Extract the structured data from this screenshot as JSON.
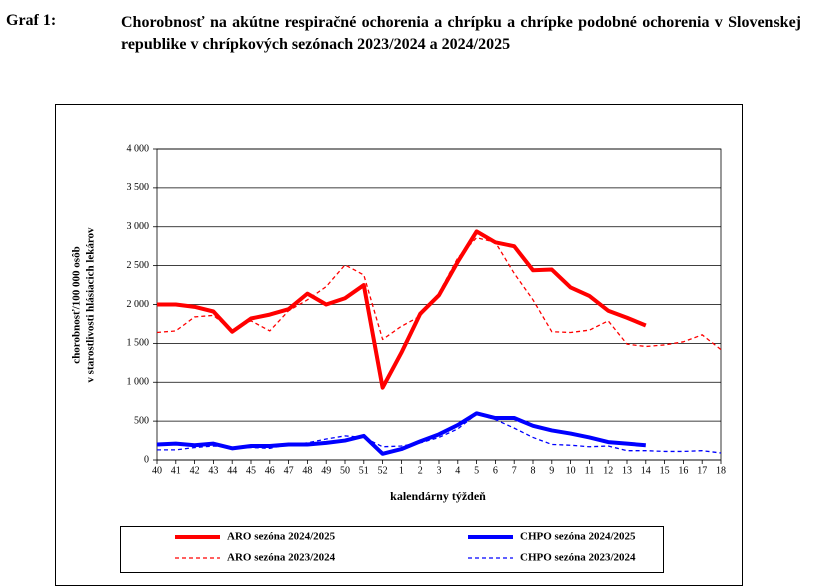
{
  "caption": "Graf 1:",
  "chart_data": {
    "type": "line",
    "title": "Chorobnosť na akútne respiračné ochorenia a chrípku a chrípke podobné ochorenia v Slovenskej republike v chrípkových sezónach 2023/2024 a 2024/2025",
    "x_label": "kalendárny týždeň",
    "y_label": [
      "chorobnosť/100 000 osôb",
      "v starostlivosti hlásiacich lekárov"
    ],
    "categories": [
      "40",
      "41",
      "42",
      "43",
      "44",
      "45",
      "46",
      "47",
      "48",
      "49",
      "50",
      "51",
      "52",
      "1",
      "2",
      "3",
      "4",
      "5",
      "6",
      "7",
      "8",
      "9",
      "10",
      "11",
      "12",
      "13",
      "14",
      "15",
      "16",
      "17",
      "18"
    ],
    "ylim": [
      0,
      4000
    ],
    "yticks": [
      0,
      500,
      {
        "value": 1000,
        "label": "1 000"
      },
      {
        "value": 1500,
        "label": "1 500"
      },
      {
        "value": 2000,
        "label": "2 000"
      },
      {
        "value": 2500,
        "label": "2 500"
      },
      {
        "value": 3000,
        "label": "3 000"
      },
      {
        "value": 3500,
        "label": "3 500"
      },
      {
        "value": 4000,
        "label": "4 000"
      }
    ],
    "grid": true,
    "legend": "bottom",
    "series": [
      {
        "name": "ARO sezóna 2024/2025",
        "color": "#ff0000",
        "width": 4,
        "dashed": false,
        "values": [
          2000,
          2000,
          1970,
          1910,
          1650,
          1820,
          1870,
          1940,
          2140,
          2000,
          2080,
          2250,
          930,
          1380,
          1880,
          2120,
          2550,
          2940,
          2800,
          2750,
          2440,
          2450,
          2220,
          2110,
          1920,
          1830,
          1730,
          null,
          null,
          null,
          null
        ]
      },
      {
        "name": "CHPO sezóna 2024/2025",
        "color": "#0000ff",
        "width": 4,
        "dashed": false,
        "values": [
          200,
          210,
          190,
          210,
          150,
          180,
          180,
          200,
          200,
          220,
          250,
          310,
          80,
          140,
          240,
          330,
          450,
          600,
          540,
          540,
          440,
          380,
          340,
          290,
          230,
          210,
          190,
          null,
          null,
          null,
          null
        ]
      },
      {
        "name": "ARO sezóna 2023/2024",
        "color": "#ff0000",
        "width": 1.3,
        "dashed": true,
        "values": [
          1640,
          1660,
          1840,
          1860,
          1660,
          1790,
          1660,
          1920,
          2060,
          2230,
          2510,
          2380,
          1550,
          1720,
          1850,
          2150,
          2600,
          2860,
          2800,
          2400,
          2060,
          1650,
          1640,
          1670,
          1790,
          1490,
          1460,
          1480,
          1520,
          1610,
          1420
        ]
      },
      {
        "name": "CHPO sezóna 2023/2024",
        "color": "#0000ff",
        "width": 1.3,
        "dashed": true,
        "values": [
          130,
          130,
          160,
          180,
          160,
          160,
          150,
          200,
          220,
          270,
          310,
          290,
          170,
          180,
          220,
          290,
          400,
          590,
          520,
          410,
          290,
          200,
          190,
          170,
          180,
          120,
          120,
          110,
          110,
          120,
          90
        ]
      }
    ]
  }
}
